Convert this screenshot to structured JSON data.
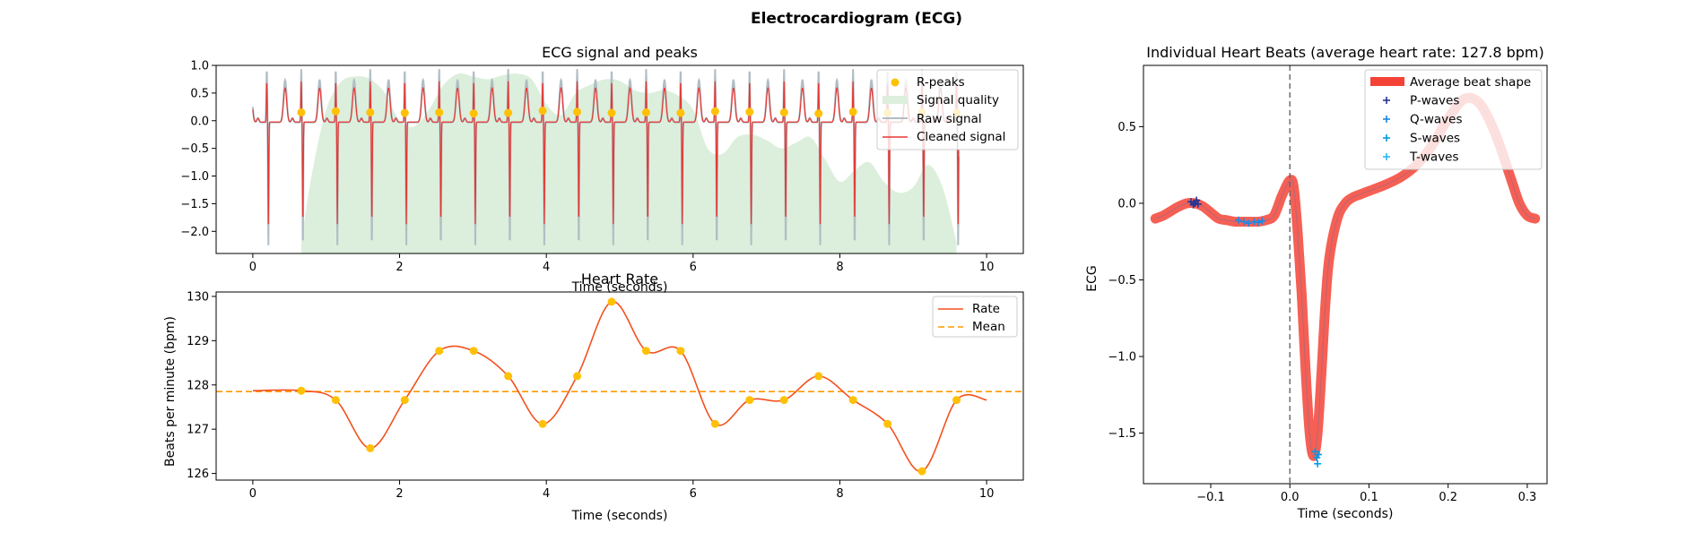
{
  "figure": {
    "title": "Electrocardiogram (ECG)"
  },
  "chart_data": [
    {
      "id": "ecg-signal",
      "type": "line",
      "title": "ECG signal and peaks",
      "xlabel": "Time (seconds)",
      "ylabel": "",
      "xlim": [
        -0.5,
        10.5
      ],
      "ylim": [
        -2.4,
        1.0
      ],
      "xticks": [
        0,
        2,
        4,
        6,
        8,
        10
      ],
      "yticks": [
        1.0,
        0.5,
        0.0,
        -0.5,
        -1.0,
        -1.5,
        -2.0
      ],
      "ytick_labels": [
        "1.0",
        "0.5",
        "0.0",
        "−0.5",
        "−1.0",
        "−1.5",
        "−2.0"
      ],
      "legend": {
        "position": "top-right",
        "entries": [
          "R-peaks",
          "Signal quality",
          "Raw signal",
          "Cleaned signal"
        ]
      },
      "colors": {
        "peaks": "#FFC107",
        "quality": "#DCEFDC",
        "raw": "#B0BEC5",
        "cleaned": "#E53935"
      },
      "r_peak_times": [
        0.66,
        1.13,
        1.6,
        2.07,
        2.54,
        3.01,
        3.48,
        3.95,
        4.42,
        4.89,
        5.36,
        5.83,
        6.3,
        6.77,
        7.24,
        7.71,
        8.18,
        8.65,
        9.12,
        9.59
      ],
      "r_peak_values": [
        0.15,
        0.17,
        0.15,
        0.14,
        0.15,
        0.13,
        0.14,
        0.18,
        0.16,
        0.14,
        0.15,
        0.14,
        0.17,
        0.16,
        0.15,
        0.13,
        0.16,
        0.14,
        0.15,
        0.14
      ],
      "quality_curve": {
        "x": [
          0.66,
          0.8,
          1.0,
          1.2,
          1.4,
          1.6,
          1.8,
          2.0,
          2.2,
          2.4,
          2.6,
          2.8,
          3.0,
          3.2,
          3.4,
          3.6,
          3.8,
          4.0,
          4.2,
          4.4,
          4.6,
          4.8,
          5.0,
          5.2,
          5.4,
          5.6,
          5.8,
          6.0,
          6.2,
          6.4,
          6.6,
          6.8,
          7.0,
          7.2,
          7.4,
          7.6,
          7.8,
          8.0,
          8.2,
          8.4,
          8.6,
          8.8,
          9.0,
          9.2,
          9.4,
          9.59
        ],
        "y": [
          -2.2,
          -1.0,
          0.2,
          0.7,
          0.8,
          0.75,
          0.5,
          0.0,
          -0.1,
          0.2,
          0.65,
          0.85,
          0.8,
          0.75,
          0.82,
          0.85,
          0.75,
          0.3,
          0.1,
          0.5,
          0.65,
          0.75,
          0.72,
          0.55,
          0.5,
          0.55,
          0.45,
          0.2,
          -0.5,
          -0.6,
          -0.3,
          -0.25,
          -0.35,
          -0.5,
          -0.4,
          -0.3,
          -0.7,
          -1.1,
          -0.9,
          -0.75,
          -1.1,
          -1.3,
          -1.2,
          -0.8,
          -1.2,
          -2.2
        ]
      }
    },
    {
      "id": "heart-rate",
      "type": "line",
      "title": "Heart Rate",
      "xlabel": "Time (seconds)",
      "ylabel": "Beats per minute (bpm)",
      "xlim": [
        -0.5,
        10.5
      ],
      "ylim": [
        125.85,
        130.1
      ],
      "xticks": [
        0,
        2,
        4,
        6,
        8,
        10
      ],
      "yticks": [
        126,
        127,
        128,
        129,
        130
      ],
      "legend": {
        "position": "top-right",
        "entries": [
          "Rate",
          "Mean"
        ]
      },
      "colors": {
        "rate": "#F4511E",
        "mean": "#FF9800",
        "points": "#FFC107"
      },
      "mean": 127.85,
      "x": [
        0,
        0.66,
        1.13,
        1.6,
        2.07,
        2.54,
        3.01,
        3.48,
        3.95,
        4.42,
        4.89,
        5.36,
        5.83,
        6.3,
        6.77,
        7.24,
        7.71,
        8.18,
        8.65,
        9.12,
        9.59,
        10.0
      ],
      "values": [
        127.87,
        127.87,
        127.66,
        126.57,
        127.66,
        128.77,
        128.77,
        128.2,
        127.12,
        128.2,
        129.88,
        128.77,
        128.77,
        127.12,
        127.66,
        127.66,
        128.2,
        127.66,
        127.12,
        126.05,
        127.66,
        127.66
      ],
      "point_indices": [
        1,
        2,
        3,
        4,
        5,
        6,
        7,
        8,
        9,
        10,
        11,
        12,
        13,
        14,
        15,
        16,
        17,
        18,
        19,
        20
      ]
    },
    {
      "id": "heart-beats",
      "type": "line",
      "title": "Individual Heart Beats (average heart rate: 127.8 bpm)",
      "xlabel": "Time (seconds)",
      "ylabel": "ECG",
      "xlim": [
        -0.185,
        0.325
      ],
      "ylim": [
        -1.83,
        0.9
      ],
      "xticks": [
        -0.1,
        0.0,
        0.1,
        0.2,
        0.3
      ],
      "xtick_labels": [
        "−0.1",
        "0.0",
        "0.1",
        "0.2",
        "0.3"
      ],
      "yticks": [
        0.5,
        0.0,
        -0.5,
        -1.0,
        -1.5
      ],
      "ytick_labels": [
        "0.5",
        "0.0",
        "−0.5",
        "−1.0",
        "−1.5"
      ],
      "legend": {
        "position": "top-right",
        "entries": [
          "Average beat shape",
          "P-waves",
          "Q-waves",
          "S-waves",
          "T-waves"
        ]
      },
      "colors": {
        "average": "#F44336",
        "p": "#283593",
        "q": "#1E88E5",
        "s": "#039BE5",
        "t": "#29B6F6",
        "beat_line": "#8C6A8C"
      },
      "average_beat": {
        "x": [
          -0.17,
          -0.16,
          -0.15,
          -0.14,
          -0.13,
          -0.12,
          -0.11,
          -0.1,
          -0.09,
          -0.08,
          -0.07,
          -0.06,
          -0.05,
          -0.04,
          -0.03,
          -0.02,
          -0.01,
          0.0,
          0.005,
          0.01,
          0.015,
          0.02,
          0.025,
          0.03,
          0.035,
          0.04,
          0.045,
          0.05,
          0.06,
          0.07,
          0.08,
          0.09,
          0.1,
          0.12,
          0.14,
          0.16,
          0.18,
          0.2,
          0.22,
          0.24,
          0.26,
          0.28,
          0.29,
          0.3,
          0.31
        ],
        "y": [
          -0.1,
          -0.08,
          -0.05,
          -0.02,
          0.0,
          0.0,
          -0.02,
          -0.06,
          -0.1,
          -0.11,
          -0.12,
          -0.12,
          -0.12,
          -0.12,
          -0.11,
          -0.08,
          0.05,
          0.15,
          0.1,
          -0.2,
          -0.6,
          -1.1,
          -1.5,
          -1.65,
          -1.5,
          -1.1,
          -0.65,
          -0.35,
          -0.1,
          0.0,
          0.04,
          0.06,
          0.08,
          0.12,
          0.17,
          0.25,
          0.38,
          0.55,
          0.68,
          0.65,
          0.45,
          0.15,
          0.0,
          -0.08,
          -0.1
        ]
      },
      "p_waves": {
        "x": [
          -0.125,
          -0.122,
          -0.12,
          -0.118,
          -0.116
        ],
        "y": [
          0.01,
          -0.01,
          0.0,
          0.02,
          -0.005
        ]
      },
      "q_waves": {
        "x": [
          -0.065,
          -0.058,
          -0.052,
          -0.045,
          -0.04,
          -0.035
        ],
        "y": [
          -0.11,
          -0.12,
          -0.13,
          -0.12,
          -0.125,
          -0.115
        ]
      },
      "s_waves": {
        "x": [
          0.032,
          0.034,
          0.035,
          0.036
        ],
        "y": [
          -1.62,
          -1.66,
          -1.7,
          -1.64
        ]
      },
      "t_waves": {
        "x": [],
        "y": []
      }
    }
  ]
}
